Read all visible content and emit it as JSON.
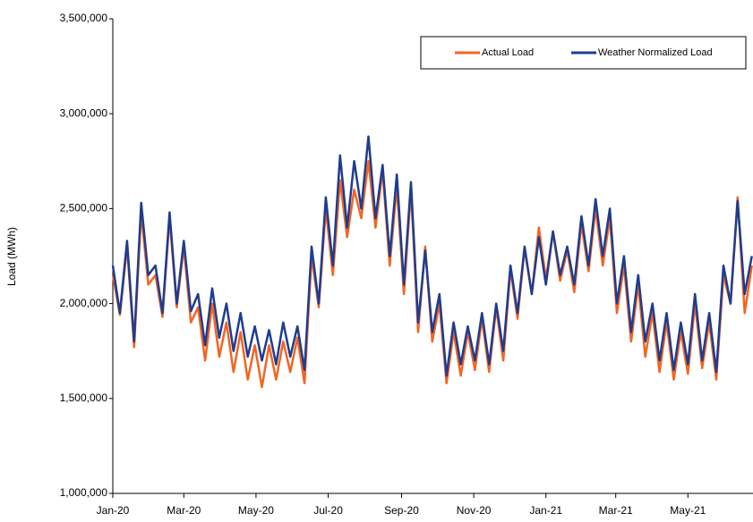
{
  "chart_data": {
    "type": "line",
    "y_label": "Load (MWh)",
    "x": [
      0,
      6,
      12,
      18,
      24,
      30,
      36,
      42,
      48,
      54,
      60,
      66,
      72,
      78,
      84,
      90,
      96,
      102,
      108,
      114,
      120,
      126,
      132,
      138,
      144,
      150,
      156,
      162,
      168,
      174,
      180,
      186,
      192,
      198,
      204,
      210,
      216,
      222,
      228,
      234,
      240,
      246,
      252,
      258,
      264,
      270,
      276,
      282,
      288,
      294,
      300,
      306,
      312,
      318,
      324,
      330,
      336,
      342,
      348,
      354,
      360,
      366,
      372,
      378,
      384,
      390,
      396,
      402,
      408,
      414,
      420,
      426,
      432,
      438,
      444,
      450,
      456,
      462,
      468,
      474,
      480,
      486,
      492,
      498,
      504,
      510,
      516,
      522,
      528,
      534,
      540
    ],
    "series": [
      {
        "name": "Actual Load",
        "color": "#f26522",
        "values": [
          2150000,
          1940000,
          2300000,
          1770000,
          2480000,
          2100000,
          2150000,
          1930000,
          2450000,
          1980000,
          2300000,
          1900000,
          1980000,
          1700000,
          2000000,
          1720000,
          1900000,
          1640000,
          1850000,
          1600000,
          1780000,
          1560000,
          1780000,
          1600000,
          1800000,
          1640000,
          1820000,
          1580000,
          2250000,
          1980000,
          2500000,
          2150000,
          2650000,
          2350000,
          2600000,
          2450000,
          2750000,
          2400000,
          2700000,
          2200000,
          2620000,
          2050000,
          2600000,
          1850000,
          2300000,
          1800000,
          2000000,
          1580000,
          1850000,
          1620000,
          1850000,
          1650000,
          1920000,
          1640000,
          1980000,
          1700000,
          2180000,
          1920000,
          2290000,
          2050000,
          2400000,
          2130000,
          2380000,
          2120000,
          2280000,
          2060000,
          2420000,
          2170000,
          2500000,
          2200000,
          2450000,
          1950000,
          2200000,
          1800000,
          2100000,
          1720000,
          1950000,
          1640000,
          1900000,
          1600000,
          1850000,
          1630000,
          2000000,
          1660000,
          1900000,
          1600000,
          2150000,
          2000000,
          2560000,
          1950000,
          2200000
        ]
      },
      {
        "name": "Weather Normalized Load",
        "color": "#1f3c8f",
        "values": [
          2200000,
          1950000,
          2330000,
          1800000,
          2530000,
          2150000,
          2200000,
          1950000,
          2480000,
          2000000,
          2330000,
          1960000,
          2050000,
          1780000,
          2080000,
          1820000,
          2000000,
          1750000,
          1950000,
          1720000,
          1880000,
          1700000,
          1860000,
          1680000,
          1900000,
          1720000,
          1880000,
          1650000,
          2300000,
          2000000,
          2560000,
          2200000,
          2780000,
          2400000,
          2750000,
          2500000,
          2880000,
          2450000,
          2730000,
          2250000,
          2680000,
          2100000,
          2640000,
          1900000,
          2280000,
          1850000,
          2050000,
          1620000,
          1900000,
          1680000,
          1880000,
          1700000,
          1950000,
          1680000,
          2000000,
          1750000,
          2200000,
          1950000,
          2300000,
          2050000,
          2350000,
          2100000,
          2380000,
          2150000,
          2300000,
          2100000,
          2460000,
          2200000,
          2550000,
          2250000,
          2500000,
          2000000,
          2250000,
          1850000,
          2150000,
          1800000,
          2000000,
          1700000,
          1950000,
          1650000,
          1900000,
          1680000,
          2050000,
          1700000,
          1950000,
          1640000,
          2200000,
          2000000,
          2540000,
          2050000,
          2250000
        ]
      }
    ],
    "xlim": [
      0,
      541
    ],
    "xticks": [
      {
        "value": 0,
        "label": "Jan-20"
      },
      {
        "value": 60,
        "label": "Mar-20"
      },
      {
        "value": 121,
        "label": "May-20"
      },
      {
        "value": 182,
        "label": "Jul-20"
      },
      {
        "value": 244,
        "label": "Sep-20"
      },
      {
        "value": 305,
        "label": "Nov-20"
      },
      {
        "value": 366,
        "label": "Jan-21"
      },
      {
        "value": 425,
        "label": "Mar-21"
      },
      {
        "value": 486,
        "label": "May-21"
      }
    ],
    "ylim": [
      1000000,
      3500000
    ],
    "yticks": [
      {
        "value": 1000000,
        "label": "1,000,000"
      },
      {
        "value": 1500000,
        "label": "1,500,000"
      },
      {
        "value": 2000000,
        "label": "2,000,000"
      },
      {
        "value": 2500000,
        "label": "2,500,000"
      },
      {
        "value": 3000000,
        "label": "3,000,000"
      },
      {
        "value": 3500000,
        "label": "3,500,000"
      }
    ],
    "grid": false,
    "legend": "top-right"
  }
}
